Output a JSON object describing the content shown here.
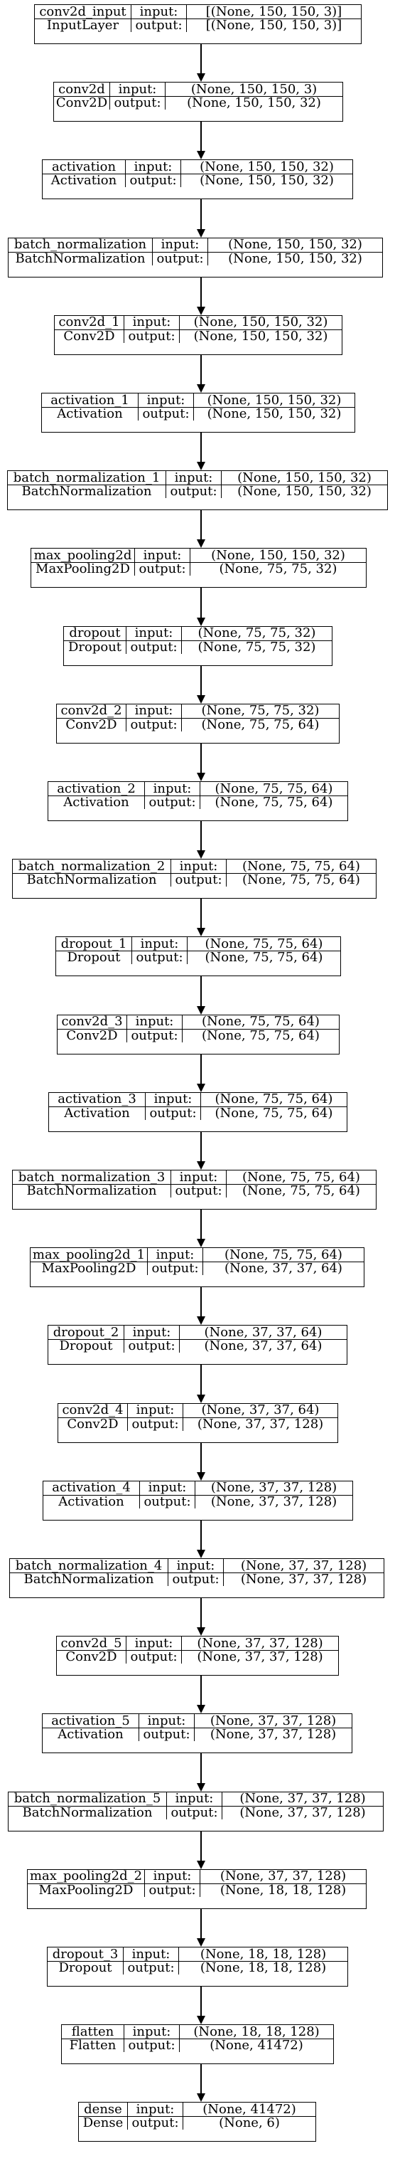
{
  "layers": [
    {
      "name": "conv2d_input",
      "type": "InputLayer",
      "input": "[(None, 150, 150, 3)]",
      "output": "[(None, 150, 150, 3)]"
    },
    {
      "name": "conv2d",
      "type": "Conv2D",
      "input": "(None, 150, 150, 3)",
      "output": "(None, 150, 150, 32)"
    },
    {
      "name": "activation",
      "type": "Activation",
      "input": "(None, 150, 150, 32)",
      "output": "(None, 150, 150, 32)"
    },
    {
      "name": "batch_normalization",
      "type": "BatchNormalization",
      "input": "(None, 150, 150, 32)",
      "output": "(None, 150, 150, 32)"
    },
    {
      "name": "conv2d_1",
      "type": "Conv2D",
      "input": "(None, 150, 150, 32)",
      "output": "(None, 150, 150, 32)"
    },
    {
      "name": "activation_1",
      "type": "Activation",
      "input": "(None, 150, 150, 32)",
      "output": "(None, 150, 150, 32)"
    },
    {
      "name": "batch_normalization_1",
      "type": "BatchNormalization",
      "input": "(None, 150, 150, 32)",
      "output": "(None, 150, 150, 32)"
    },
    {
      "name": "max_pooling2d",
      "type": "MaxPooling2D",
      "input": "(None, 150, 150, 32)",
      "output": "(None, 75, 75, 32)"
    },
    {
      "name": "dropout",
      "type": "Dropout",
      "input": "(None, 75, 75, 32)",
      "output": "(None, 75, 75, 32)"
    },
    {
      "name": "conv2d_2",
      "type": "Conv2D",
      "input": "(None, 75, 75, 32)",
      "output": "(None, 75, 75, 64)"
    },
    {
      "name": "activation_2",
      "type": "Activation",
      "input": "(None, 75, 75, 64)",
      "output": "(None, 75, 75, 64)"
    },
    {
      "name": "batch_normalization_2",
      "type": "BatchNormalization",
      "input": "(None, 75, 75, 64)",
      "output": "(None, 75, 75, 64)"
    },
    {
      "name": "dropout_1",
      "type": "Dropout",
      "input": "(None, 75, 75, 64)",
      "output": "(None, 75, 75, 64)"
    },
    {
      "name": "conv2d_3",
      "type": "Conv2D",
      "input": "(None, 75, 75, 64)",
      "output": "(None, 75, 75, 64)"
    },
    {
      "name": "activation_3",
      "type": "Activation",
      "input": "(None, 75, 75, 64)",
      "output": "(None, 75, 75, 64)"
    },
    {
      "name": "batch_normalization_3",
      "type": "BatchNormalization",
      "input": "(None, 75, 75, 64)",
      "output": "(None, 75, 75, 64)"
    },
    {
      "name": "max_pooling2d_1",
      "type": "MaxPooling2D",
      "input": "(None, 75, 75, 64)",
      "output": "(None, 37, 37, 64)"
    },
    {
      "name": "dropout_2",
      "type": "Dropout",
      "input": "(None, 37, 37, 64)",
      "output": "(None, 37, 37, 64)"
    },
    {
      "name": "conv2d_4",
      "type": "Conv2D",
      "input": "(None, 37, 37, 64)",
      "output": "(None, 37, 37, 128)"
    },
    {
      "name": "activation_4",
      "type": "Activation",
      "input": "(None, 37, 37, 128)",
      "output": "(None, 37, 37, 128)"
    },
    {
      "name": "batch_normalization_4",
      "type": "BatchNormalization",
      "input": "(None, 37, 37, 128)",
      "output": "(None, 37, 37, 128)"
    },
    {
      "name": "conv2d_5",
      "type": "Conv2D",
      "input": "(None, 37, 37, 128)",
      "output": "(None, 37, 37, 128)"
    },
    {
      "name": "activation_5",
      "type": "Activation",
      "input": "(None, 37, 37, 128)",
      "output": "(None, 37, 37, 128)"
    },
    {
      "name": "batch_normalization_5",
      "type": "BatchNormalization",
      "input": "(None, 37, 37, 128)",
      "output": "(None, 37, 37, 128)"
    },
    {
      "name": "max_pooling2d_2",
      "type": "MaxPooling2D",
      "input": "(None, 37, 37, 128)",
      "output": "(None, 18, 18, 128)"
    },
    {
      "name": "dropout_3",
      "type": "Dropout",
      "input": "(None, 18, 18, 128)",
      "output": "(None, 18, 18, 128)"
    },
    {
      "name": "flatten",
      "type": "Flatten",
      "input": "(None, 18, 18, 128)",
      "output": "(None, 41472)"
    },
    {
      "name": "dense",
      "type": "Dense",
      "input": "(None, 41472)",
      "output": "(None, 6)"
    }
  ],
  "labels": {
    "input": "input:",
    "output": "output:"
  }
}
